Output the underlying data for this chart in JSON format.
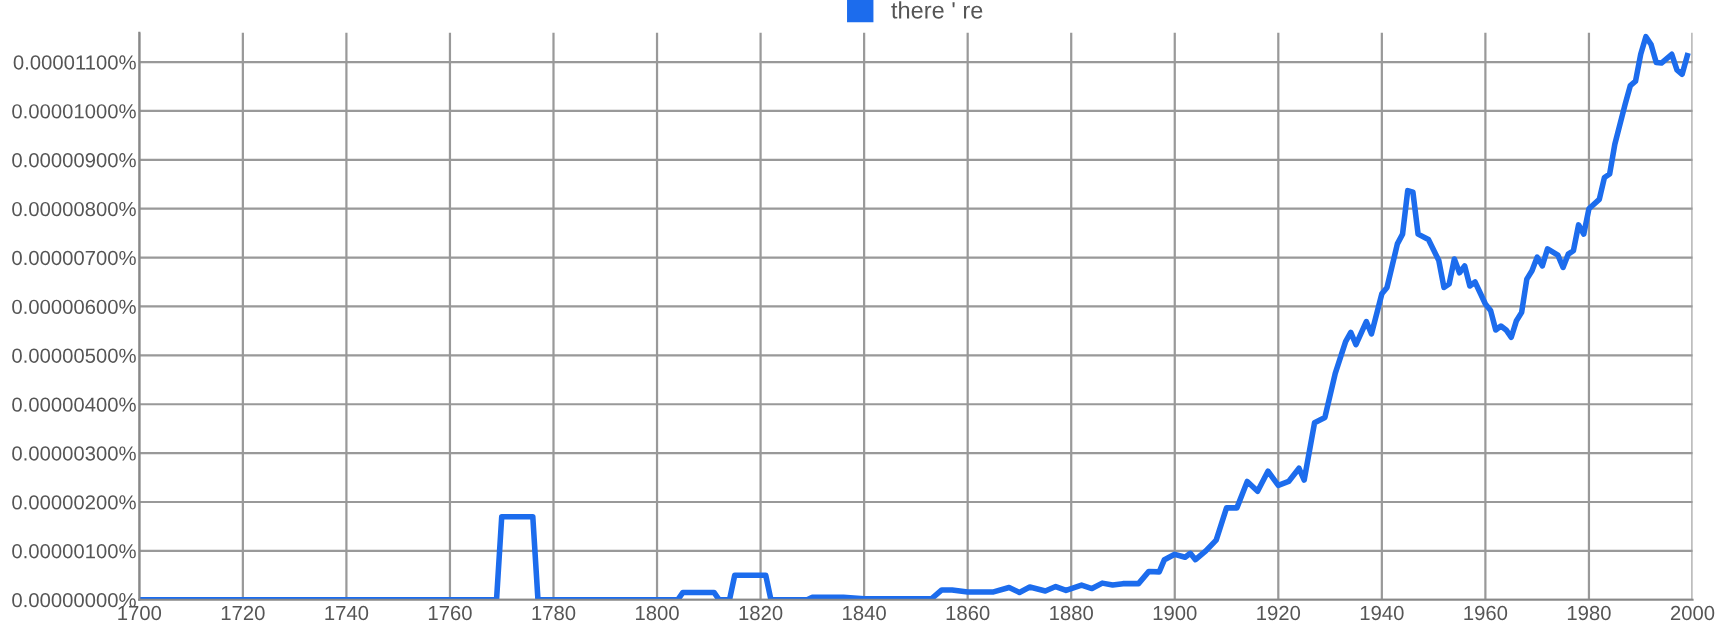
{
  "chart_data": {
    "type": "line",
    "x": [
      1700,
      1769,
      1770,
      1776,
      1777,
      1804,
      1805,
      1811,
      1812,
      1814,
      1815,
      1821,
      1822,
      1829,
      1830,
      1836,
      1840,
      1853,
      1855,
      1857,
      1860,
      1865,
      1868,
      1870,
      1872,
      1875,
      1877,
      1879,
      1882,
      1884,
      1886,
      1888,
      1890,
      1893,
      1895,
      1897,
      1898,
      1900,
      1902,
      1903,
      1904,
      1906,
      1908,
      1910,
      1912,
      1914,
      1916,
      1918,
      1920,
      1922,
      1924,
      1925,
      1927,
      1929,
      1931,
      1933,
      1934,
      1935,
      1937,
      1938,
      1940,
      1941,
      1943,
      1944,
      1945,
      1946,
      1947,
      1949,
      1951,
      1952,
      1953,
      1954,
      1955,
      1956,
      1957,
      1958,
      1960,
      1961,
      1962,
      1963,
      1964,
      1965,
      1966,
      1967,
      1968,
      1969,
      1970,
      1971,
      1972,
      1974,
      1975,
      1976,
      1977,
      1978,
      1979,
      1980,
      1982,
      1983,
      1984,
      1985,
      1987,
      1988,
      1989,
      1990,
      1991,
      1992,
      1993,
      1994,
      1996,
      1997,
      1998,
      1999
    ],
    "series": [
      {
        "name": "there ' re",
        "color": "#1c6ced",
        "values": [
          0,
          0,
          1.7e-06,
          1.7e-06,
          0,
          0,
          1.5e-07,
          1.5e-07,
          0,
          0,
          5e-07,
          5e-07,
          0,
          0,
          5e-08,
          5e-08,
          2e-08,
          2e-08,
          2e-07,
          2e-07,
          1.6e-07,
          1.6e-07,
          2.5e-07,
          1.5e-07,
          2.6e-07,
          1.8e-07,
          2.7e-07,
          1.9e-07,
          3e-07,
          2.3e-07,
          3.4e-07,
          3e-07,
          3.3e-07,
          3.3e-07,
          5.8e-07,
          5.7e-07,
          8.2e-07,
          9.3e-07,
          8.7e-07,
          9.5e-07,
          8.2e-07,
          1e-06,
          1.22e-06,
          1.88e-06,
          1.88e-06,
          2.42e-06,
          2.22e-06,
          2.63e-06,
          2.34e-06,
          2.42e-06,
          2.69e-06,
          2.45e-06,
          3.62e-06,
          3.73e-06,
          4.63e-06,
          5.28e-06,
          5.47e-06,
          5.22e-06,
          5.69e-06,
          5.44e-06,
          6.26e-06,
          6.39e-06,
          7.28e-06,
          7.48e-06,
          8.37e-06,
          8.34e-06,
          7.48e-06,
          7.37e-06,
          6.94e-06,
          6.39e-06,
          6.46e-06,
          6.97e-06,
          6.69e-06,
          6.83e-06,
          6.42e-06,
          6.5e-06,
          6.05e-06,
          5.92e-06,
          5.52e-06,
          5.6e-06,
          5.52e-06,
          5.37e-06,
          5.71e-06,
          5.88e-06,
          6.56e-06,
          6.73e-06,
          7.01e-06,
          6.83e-06,
          7.18e-06,
          7.05e-06,
          6.8e-06,
          7.07e-06,
          7.14e-06,
          7.67e-06,
          7.48e-06,
          8e-06,
          8.19e-06,
          8.64e-06,
          8.71e-06,
          9.32e-06,
          1.014e-05,
          1.052e-05,
          1.061e-05,
          1.116e-05,
          1.152e-05,
          1.136e-05,
          1.099e-05,
          1.098e-05,
          1.116e-05,
          1.084e-05,
          1.075e-05,
          1.113e-05
        ]
      }
    ],
    "xlim": [
      1700,
      2000
    ],
    "xticks": [
      1700,
      1720,
      1740,
      1760,
      1780,
      1800,
      1820,
      1840,
      1860,
      1880,
      1900,
      1920,
      1940,
      1960,
      1980,
      2000
    ],
    "ylim": [
      0,
      1.16e-05
    ],
    "yticks": [
      {
        "value": 0,
        "label": "0.00000000%"
      },
      {
        "value": 1e-06,
        "label": "0.00000100%"
      },
      {
        "value": 2e-06,
        "label": "0.00000200%"
      },
      {
        "value": 3e-06,
        "label": "0.00000300%"
      },
      {
        "value": 4e-06,
        "label": "0.00000400%"
      },
      {
        "value": 5e-06,
        "label": "0.00000500%"
      },
      {
        "value": 6e-06,
        "label": "0.00000600%"
      },
      {
        "value": 7e-06,
        "label": "0.00000700%"
      },
      {
        "value": 8e-06,
        "label": "0.00000800%"
      },
      {
        "value": 9e-06,
        "label": "0.00000900%"
      },
      {
        "value": 1e-05,
        "label": "0.00001000%"
      },
      {
        "value": 1.1e-05,
        "label": "0.00001100%"
      }
    ],
    "grid": true,
    "legend": "top",
    "marker": "none",
    "line_style": "solid"
  }
}
